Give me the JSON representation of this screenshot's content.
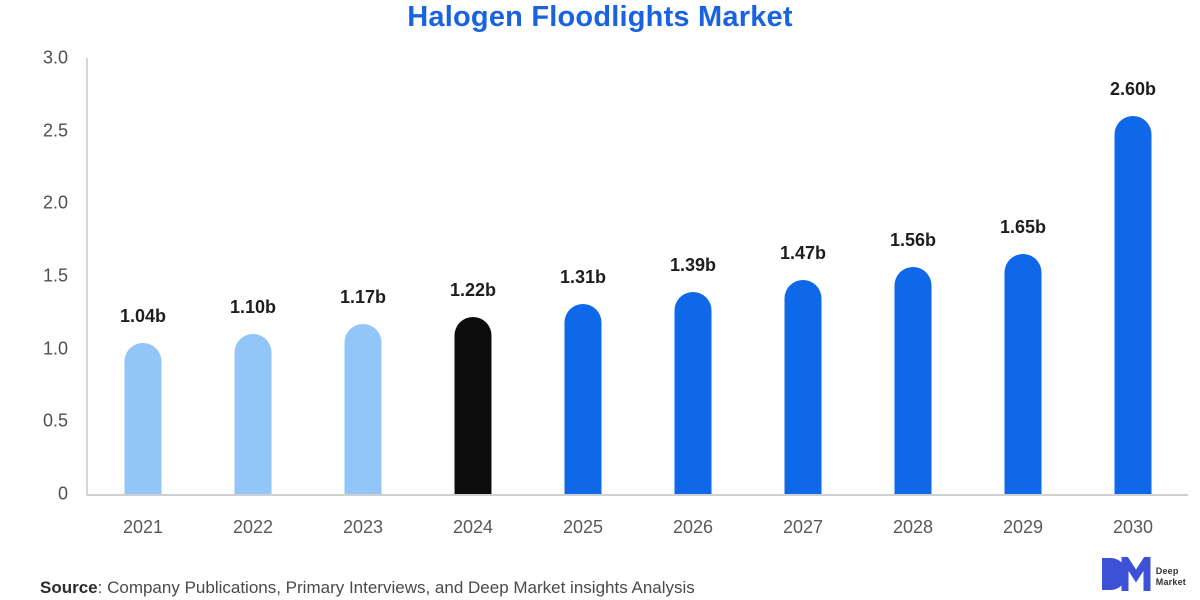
{
  "title": "Halogen Floodlights Market",
  "chart_data": {
    "type": "bar",
    "categories": [
      "2021",
      "2022",
      "2023",
      "2024",
      "2025",
      "2026",
      "2027",
      "2028",
      "2029",
      "2030"
    ],
    "values": [
      1.04,
      1.1,
      1.17,
      1.22,
      1.31,
      1.39,
      1.47,
      1.56,
      1.65,
      2.6
    ],
    "labels": [
      "1.04b",
      "1.10b",
      "1.17b",
      "1.22b",
      "1.31b",
      "1.39b",
      "1.47b",
      "1.56b",
      "1.65b",
      "2.60b"
    ],
    "bar_colors": [
      "#92c5f8",
      "#92c5f8",
      "#92c5f8",
      "#0c0c0c",
      "#0f68e8",
      "#0f68e8",
      "#0f68e8",
      "#0f68e8",
      "#0f68e8",
      "#0f68e8"
    ],
    "title": "Halogen Floodlights Market",
    "xlabel": "",
    "ylabel": "",
    "ylim": [
      0,
      3.0
    ],
    "y_ticks": [
      "3.0",
      "2.5",
      "2.0",
      "1.5",
      "1.0",
      "0.5",
      "0"
    ],
    "grid": false,
    "legend": false,
    "unit": "billions"
  },
  "colors": {
    "title_blue": "#1a63e0",
    "bar_light_blue": "#92c5f8",
    "bar_black": "#0c0c0c",
    "bar_blue": "#0f68e8",
    "logo_blue": "#3d51d6"
  },
  "footer": {
    "source_label": "Source",
    "source_text": ": Company Publications, Primary Interviews, and Deep Market insights Analysis"
  },
  "logo": {
    "monogram": "DM",
    "name_line1": "Deep",
    "name_line2": "Market"
  }
}
